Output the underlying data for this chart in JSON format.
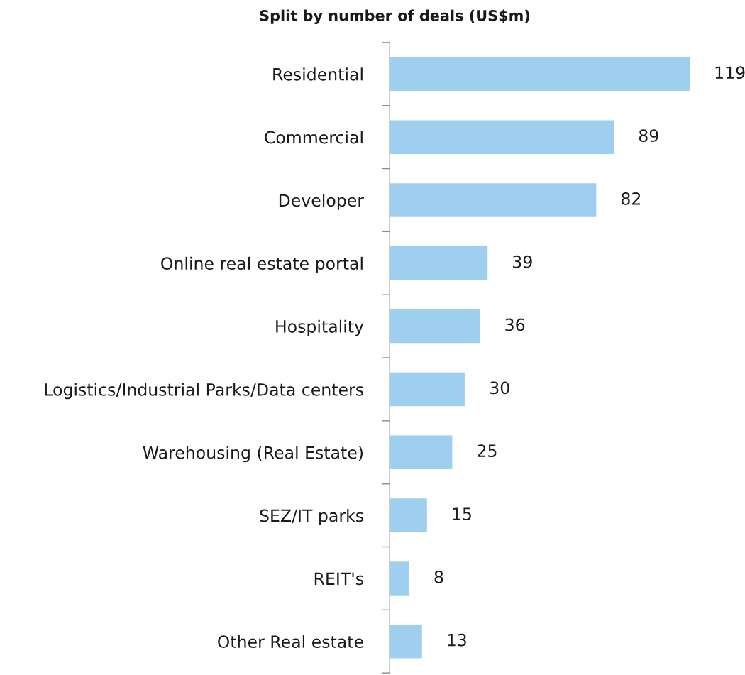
{
  "chart_data": {
    "type": "bar",
    "orientation": "horizontal",
    "title": "Split by number of deals (US$m)",
    "categories": [
      "Residential",
      "Commercial",
      "Developer",
      "Online real estate portal",
      "Hospitality",
      "Logistics/Industrial Parks/Data centers",
      "Warehousing (Real Estate)",
      "SEZ/IT parks",
      "REIT's",
      "Other Real estate"
    ],
    "values": [
      119,
      89,
      82,
      39,
      36,
      30,
      25,
      15,
      8,
      13
    ],
    "color": "#9fcfee",
    "data_labels": true,
    "grid": false,
    "legend": false
  }
}
